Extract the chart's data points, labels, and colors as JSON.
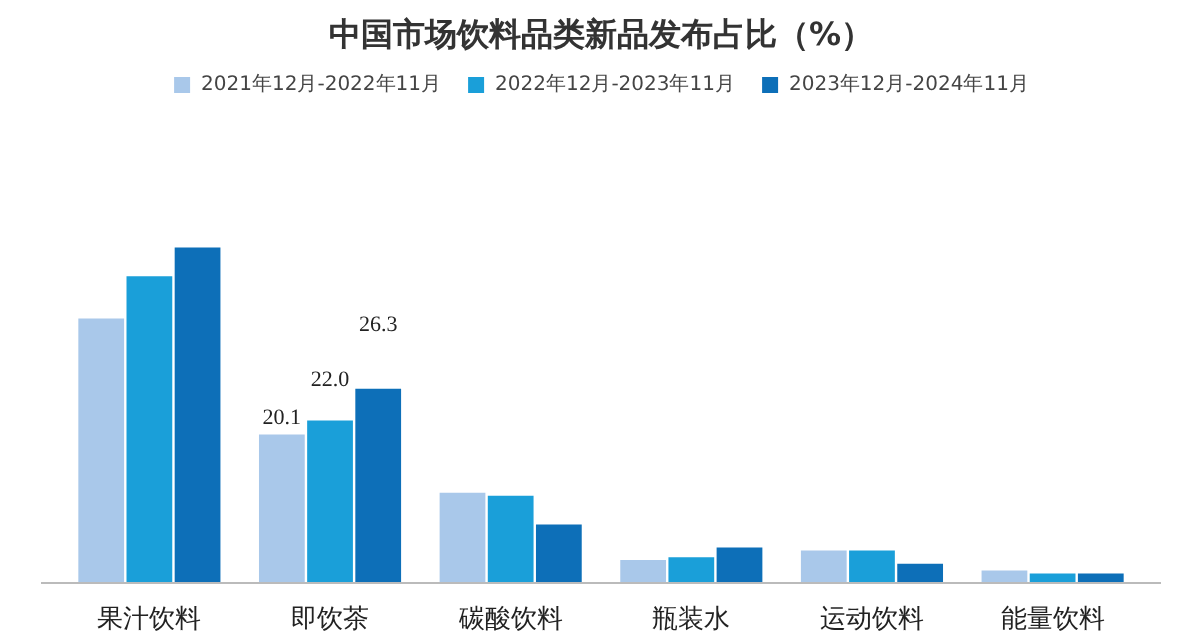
{
  "chart_data": {
    "type": "bar",
    "title": "中国市场饮料品类新品发布占比（%）",
    "categories": [
      "果汁饮料",
      "即饮茶",
      "碳酸饮料",
      "瓶装水",
      "运动饮料",
      "能量饮料"
    ],
    "series": [
      {
        "name": "2021年12月-2022年11月",
        "color": "#a9c8ea",
        "values": [
          35.8,
          20.1,
          12.2,
          3.1,
          4.4,
          1.7
        ],
        "value_labels": [
          null,
          "20.1",
          null,
          null,
          null,
          null
        ]
      },
      {
        "name": "2022年12月-2023年11月",
        "color": "#1a9fd9",
        "values": [
          41.5,
          22.0,
          11.8,
          3.5,
          4.4,
          1.3
        ],
        "value_labels": [
          null,
          "22.0",
          null,
          null,
          null,
          null
        ]
      },
      {
        "name": "2023年12月-2024年11月",
        "color": "#0d6fb8",
        "values": [
          45.4,
          26.3,
          7.9,
          4.8,
          2.6,
          1.3
        ],
        "value_labels": [
          null,
          "26.3",
          null,
          null,
          null,
          null
        ]
      }
    ],
    "legend": "top"
  }
}
